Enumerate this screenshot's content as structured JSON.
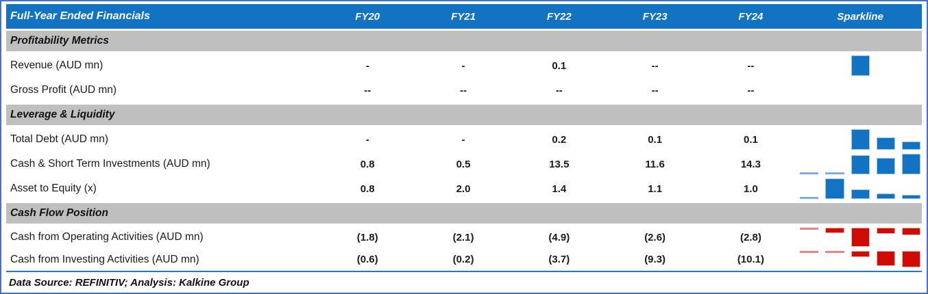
{
  "colors": {
    "header_bg": "#1173C2",
    "header_text": "#FFFFFF",
    "section_band_bg": "#BFBFBF",
    "frame_border": "#4472C4",
    "divider_rule": "#1E7AC0",
    "spark_positive": "#1173C2",
    "spark_positive_sliver": "#7EB1E0",
    "spark_negative": "#D00B04",
    "spark_negative_sliver": "#E98585"
  },
  "header": {
    "title": "Full-Year Ended Financials",
    "columns": [
      "FY20",
      "FY21",
      "FY22",
      "FY23",
      "FY24"
    ],
    "sparkline_label": "Sparkline"
  },
  "sections": [
    {
      "title": "Profitability Metrics",
      "rows": [
        {
          "label": "Revenue (AUD mn)",
          "values": [
            "-",
            "-",
            "0.1",
            "--",
            "--"
          ],
          "sparkline": {
            "color": "blue",
            "dir": "up",
            "max": 30,
            "bars": [
              null,
              null,
              1,
              null,
              null
            ]
          }
        },
        {
          "label": "Gross Profit (AUD mn)",
          "values": [
            "--",
            "--",
            "--",
            "--",
            "--"
          ],
          "sparkline": null
        }
      ]
    },
    {
      "title": "Leverage & Liquidity",
      "rows": [
        {
          "label": "Total Debt (AUD mn)",
          "values": [
            "-",
            "-",
            "0.2",
            "0.1",
            "0.1"
          ],
          "sparkline": {
            "color": "blue",
            "dir": "up",
            "max": 30,
            "bars": [
              null,
              null,
              1,
              0.6,
              0.4
            ]
          }
        },
        {
          "label": "Cash & Short Term Investments (AUD mn)",
          "values": [
            "0.8",
            "0.5",
            "13.5",
            "11.6",
            "14.3"
          ],
          "sparkline": {
            "color": "blue",
            "dir": "up",
            "max": 30,
            "bars": [
              0.07,
              0.07,
              0.94,
              0.8,
              1
            ]
          }
        },
        {
          "label": "Asset to Equity (x)",
          "values": [
            "0.8",
            "2.0",
            "1.4",
            "1.1",
            "1.0"
          ],
          "sparkline": {
            "color": "blue",
            "dir": "up",
            "max": 30,
            "bars": [
              0.1,
              1,
              0.48,
              0.25,
              0.2
            ]
          }
        }
      ]
    },
    {
      "title": "Cash Flow Position",
      "rows": [
        {
          "label": "Cash from Operating Activities (AUD mn)",
          "values": [
            "(1.8)",
            "(2.1)",
            "(4.9)",
            "(2.6)",
            "(2.8)"
          ],
          "sparkline": {
            "color": "red",
            "dir": "down",
            "max": 28,
            "bars": [
              0.08,
              0.27,
              1,
              0.33,
              0.4
            ]
          }
        },
        {
          "label": "Cash from Investing Activities (AUD mn)",
          "values": [
            "(0.6)",
            "(0.2)",
            "(3.7)",
            "(9.3)",
            "(10.1)"
          ],
          "sparkline": {
            "color": "red",
            "dir": "down",
            "max": 24,
            "bars": [
              0.08,
              0.08,
              0.38,
              0.9,
              1
            ]
          }
        }
      ]
    }
  ],
  "footer": {
    "text": "Data Source: REFINITIV; Analysis: Kalkine Group"
  },
  "chart_data": {
    "type": "table",
    "title": "Full-Year Ended Financials",
    "columns": [
      "Metric",
      "FY20",
      "FY21",
      "FY22",
      "FY23",
      "FY24"
    ],
    "rows": [
      {
        "section": "Profitability Metrics",
        "label": "Revenue (AUD mn)",
        "values": [
          "-",
          "-",
          "0.1",
          "--",
          "--"
        ]
      },
      {
        "section": "Profitability Metrics",
        "label": "Gross Profit (AUD mn)",
        "values": [
          "--",
          "--",
          "--",
          "--",
          "--"
        ]
      },
      {
        "section": "Leverage & Liquidity",
        "label": "Total Debt (AUD mn)",
        "values": [
          "-",
          "-",
          "0.2",
          "0.1",
          "0.1"
        ]
      },
      {
        "section": "Leverage & Liquidity",
        "label": "Cash & Short Term Investments (AUD mn)",
        "values": [
          "0.8",
          "0.5",
          "13.5",
          "11.6",
          "14.3"
        ]
      },
      {
        "section": "Leverage & Liquidity",
        "label": "Asset to Equity (x)",
        "values": [
          "0.8",
          "2.0",
          "1.4",
          "1.1",
          "1.0"
        ]
      },
      {
        "section": "Cash Flow Position",
        "label": "Cash from Operating Activities (AUD mn)",
        "values": [
          "(1.8)",
          "(2.1)",
          "(4.9)",
          "(2.6)",
          "(2.8)"
        ]
      },
      {
        "section": "Cash Flow Position",
        "label": "Cash from Investing Activities (AUD mn)",
        "values": [
          "(0.6)",
          "(0.2)",
          "(3.7)",
          "(9.3)",
          "(10.1)"
        ]
      }
    ]
  }
}
